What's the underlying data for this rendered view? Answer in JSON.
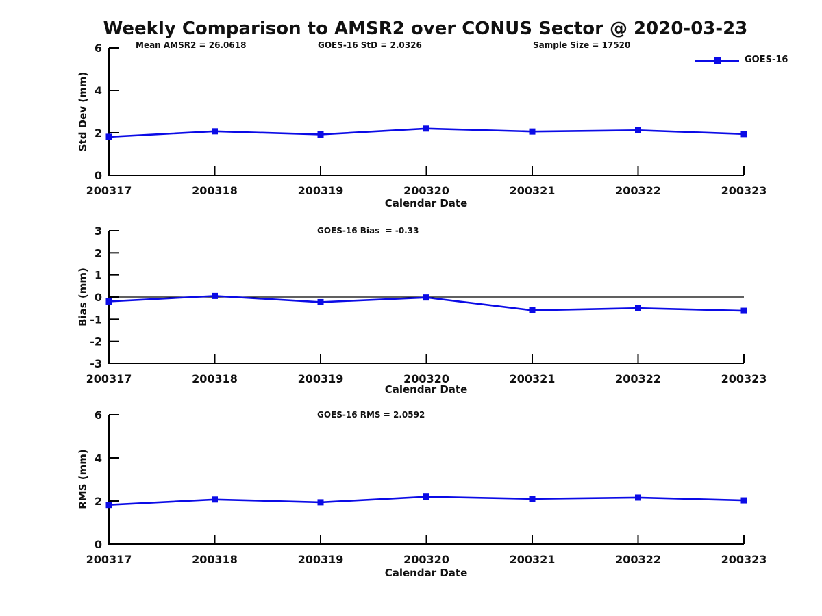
{
  "title": "Weekly Comparison to AMSR2 over CONUS Sector @ 2020-03-23",
  "legend": {
    "label": "GOES-16"
  },
  "colors": {
    "series": "#0b0be6",
    "axis": "#000000",
    "text": "#111111"
  },
  "chart_data": [
    {
      "type": "line",
      "ylabel": "Std Dev (mm)",
      "xlabel": "Calendar Date",
      "ylim": [
        0,
        6
      ],
      "yticks": [
        0,
        2,
        4,
        6
      ],
      "categories": [
        "200317",
        "200318",
        "200319",
        "200320",
        "200321",
        "200322",
        "200323"
      ],
      "series": [
        {
          "name": "GOES-16",
          "values": [
            1.81,
            2.07,
            1.92,
            2.2,
            2.06,
            2.12,
            1.94
          ]
        }
      ],
      "annotations": [
        "Mean AMSR2 = 26.0618",
        "GOES-16 StD = 2.0326",
        "Sample Size = 17520"
      ],
      "legend_position": "top-right",
      "grid": false,
      "zero_line": false
    },
    {
      "type": "line",
      "ylabel": "Bias (mm)",
      "xlabel": "Calendar Date",
      "ylim": [
        -3,
        3
      ],
      "yticks": [
        -3,
        -2,
        -1,
        0,
        1,
        2,
        3
      ],
      "categories": [
        "200317",
        "200318",
        "200319",
        "200320",
        "200321",
        "200322",
        "200323"
      ],
      "series": [
        {
          "name": "GOES-16",
          "values": [
            -0.2,
            0.05,
            -0.23,
            -0.02,
            -0.6,
            -0.5,
            -0.62
          ]
        }
      ],
      "annotation": "GOES-16 Bias  = -0.33",
      "grid": false,
      "zero_line": true
    },
    {
      "type": "line",
      "ylabel": "RMS (mm)",
      "xlabel": "Calendar Date",
      "ylim": [
        0,
        6
      ],
      "yticks": [
        0,
        2,
        4,
        6
      ],
      "categories": [
        "200317",
        "200318",
        "200319",
        "200320",
        "200321",
        "200322",
        "200323"
      ],
      "series": [
        {
          "name": "GOES-16",
          "values": [
            1.82,
            2.07,
            1.94,
            2.2,
            2.1,
            2.16,
            2.03
          ]
        }
      ],
      "annotation": "GOES-16 RMS = 2.0592",
      "grid": false,
      "zero_line": false
    }
  ]
}
